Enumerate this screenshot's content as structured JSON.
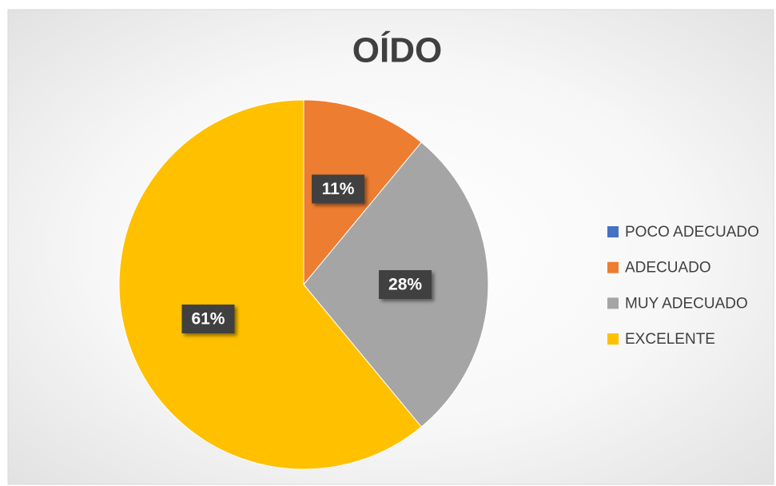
{
  "chart_data": {
    "type": "pie",
    "title": "OÍDO",
    "categories": [
      "POCO ADECUADO",
      "ADECUADO",
      "MUY ADECUADO",
      "EXCELENTE"
    ],
    "values": [
      0,
      11,
      28,
      61
    ],
    "value_labels": [
      null,
      "11%",
      "28%",
      "61%"
    ],
    "colors": [
      "#4472c4",
      "#ed7d31",
      "#a5a5a5",
      "#ffc000"
    ],
    "legend": "right"
  }
}
